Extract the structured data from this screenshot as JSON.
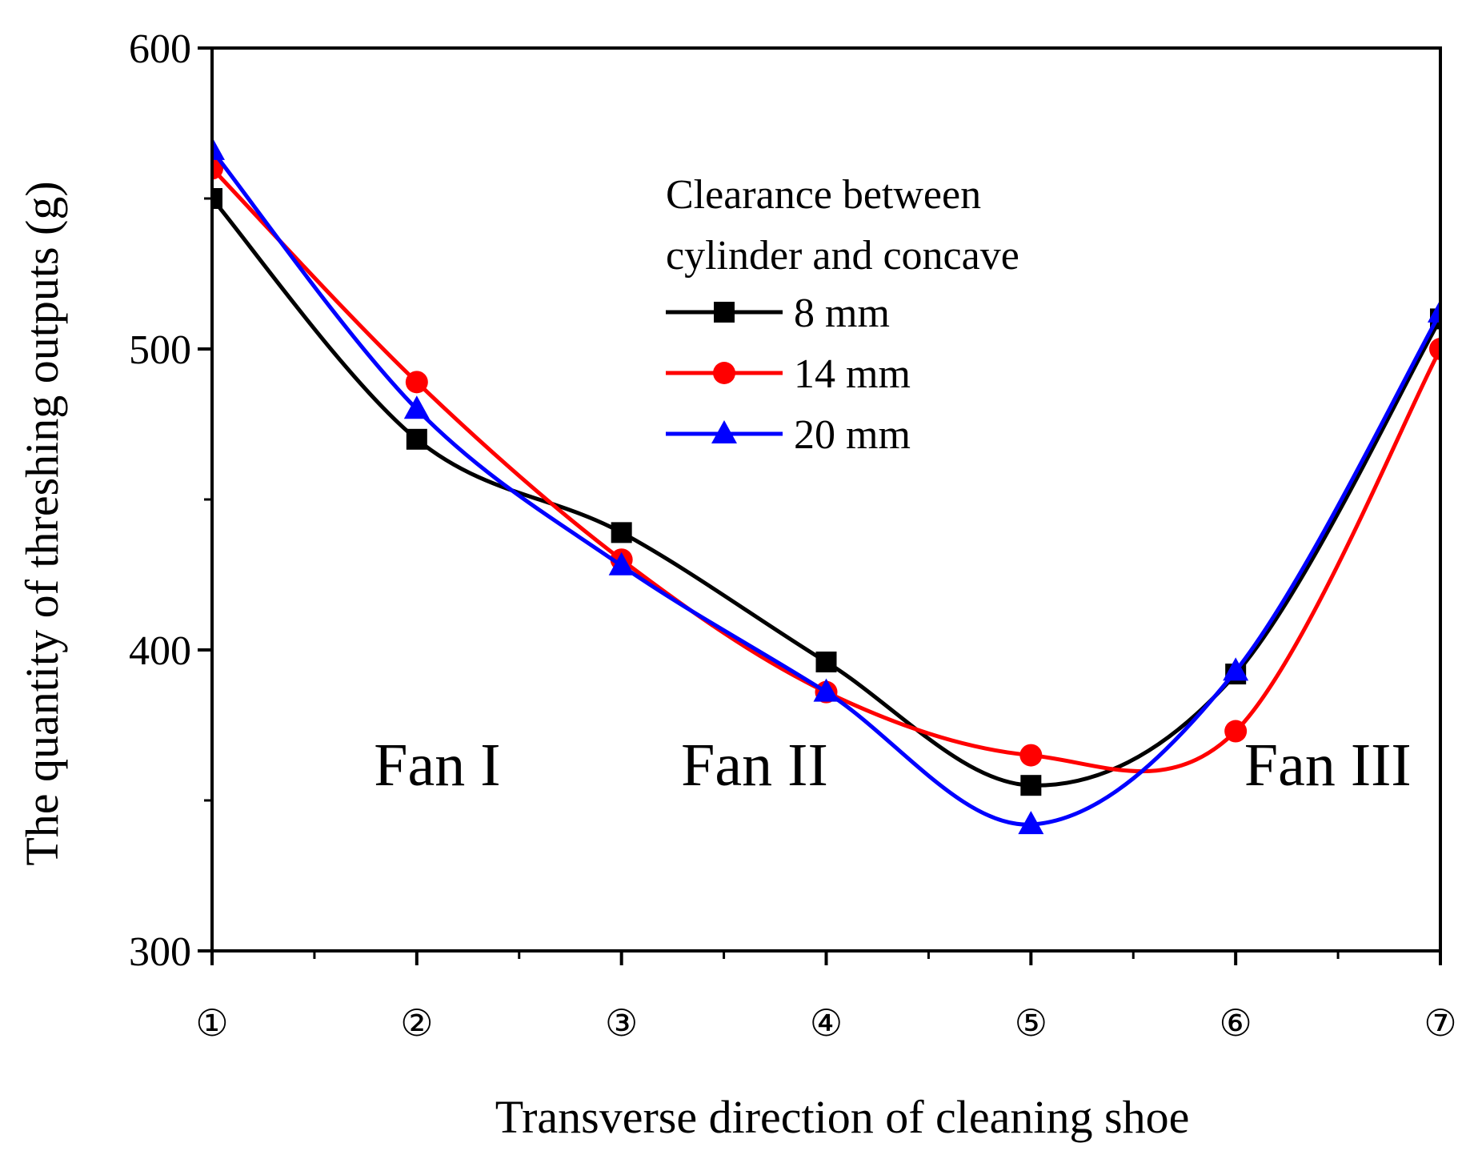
{
  "chart_data": {
    "type": "line",
    "title": "",
    "xlabel": "Transverse direction of cleaning shoe",
    "ylabel": "The quantity of threshing outputs (g)",
    "categories": [
      "①",
      "②",
      "③",
      "④",
      "⑤",
      "⑥",
      "⑦"
    ],
    "x": [
      1,
      2,
      3,
      4,
      5,
      6,
      7
    ],
    "ylim": [
      300,
      600
    ],
    "yticks": [
      "300",
      "400",
      "500",
      "600"
    ],
    "grid": false,
    "legend": {
      "title_lines": [
        "Clearance between",
        "cylinder  and concave"
      ],
      "placement": "upper-center"
    },
    "series": [
      {
        "name": " 8  mm",
        "color": "#000000",
        "marker": "square",
        "values": [
          550,
          470,
          439,
          396,
          355,
          392,
          510
        ]
      },
      {
        "name": "14 mm",
        "color": "#ff0000",
        "marker": "circle",
        "values": [
          560,
          489,
          430,
          386,
          365,
          373,
          500
        ]
      },
      {
        "name": "20 mm",
        "color": "#0000ff",
        "marker": "triangle",
        "values": [
          566,
          480,
          428,
          386,
          342,
          393,
          512
        ]
      }
    ],
    "annotations": [
      {
        "text": "Fan I",
        "x": 2.1
      },
      {
        "text": "Fan II",
        "x": 3.65
      },
      {
        "text": "Fan III",
        "x": 6.45
      }
    ],
    "annotation_y": 362
  }
}
